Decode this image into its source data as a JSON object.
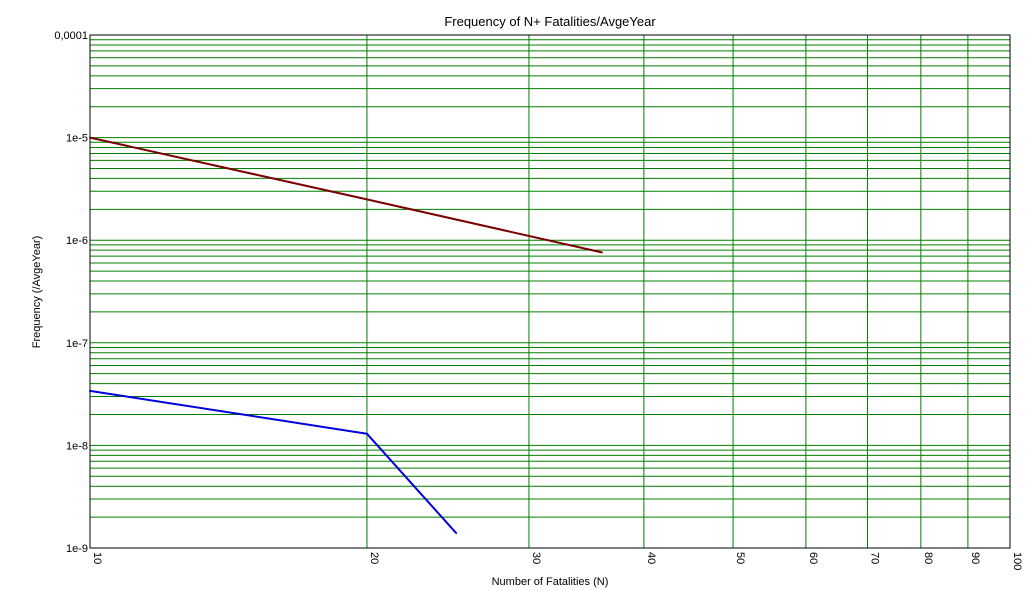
{
  "chart_data": {
    "type": "line",
    "title": "Frequency of N+ Fatalities/AvgeYear",
    "xlabel": "Number of Fatalities (N)",
    "ylabel": "Frequency (/AvgeYear)",
    "x_scale": "log",
    "y_scale": "log",
    "xlim": [
      10,
      100
    ],
    "ylim": [
      1e-09,
      0.0001
    ],
    "grid": true,
    "grid_color": "#008000",
    "x_ticks": [
      {
        "value": 10,
        "label": "10"
      },
      {
        "value": 20,
        "label": "20"
      },
      {
        "value": 30,
        "label": "30"
      },
      {
        "value": 40,
        "label": "40"
      },
      {
        "value": 50,
        "label": "50"
      },
      {
        "value": 60,
        "label": "60"
      },
      {
        "value": 70,
        "label": "70"
      },
      {
        "value": 80,
        "label": "80"
      },
      {
        "value": 90,
        "label": "90"
      },
      {
        "value": 100,
        "label": "100"
      }
    ],
    "y_ticks": [
      {
        "value": 0.0001,
        "label": "0,0001"
      },
      {
        "value": 1e-05,
        "label": "1e-5"
      },
      {
        "value": 1e-06,
        "label": "1e-6"
      },
      {
        "value": 1e-07,
        "label": "1e-7"
      },
      {
        "value": 1e-08,
        "label": "1e-8"
      },
      {
        "value": 1e-09,
        "label": "1e-9"
      }
    ],
    "series": [
      {
        "color": "#7a0000",
        "x": [
          10,
          20,
          36
        ],
        "y": [
          1e-05,
          2.5e-06,
          7.6e-07
        ]
      },
      {
        "color": "#0000dd",
        "x": [
          10,
          20,
          25
        ],
        "y": [
          3.4e-08,
          1.3e-08,
          1.4e-09
        ]
      }
    ]
  }
}
